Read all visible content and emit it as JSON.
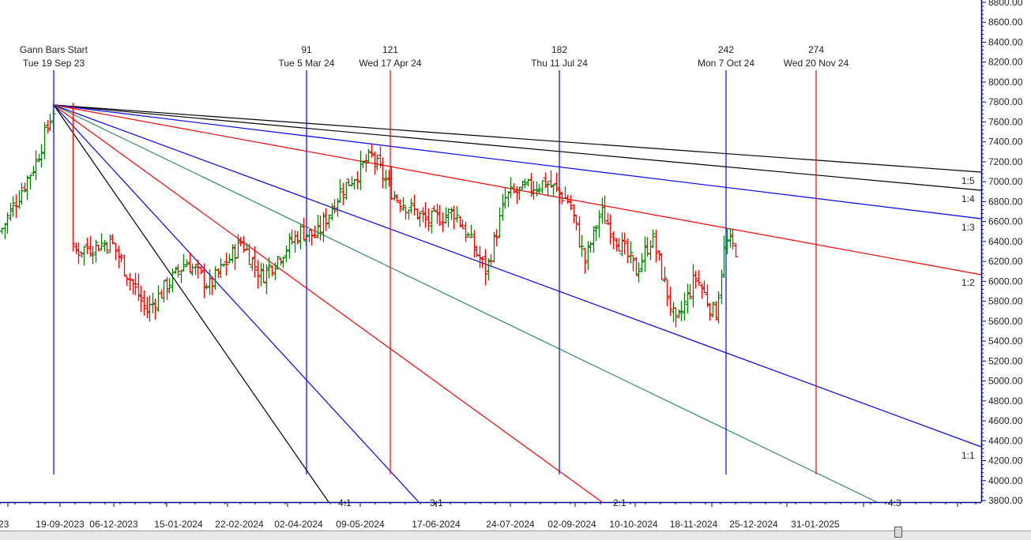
{
  "chart_data": {
    "type": "line",
    "title": "Gann Fan / Gann Bars",
    "subtype": "ohlc-bars-with-gann-fan",
    "y_axis": {
      "position": "right",
      "range": [
        3800,
        8800
      ],
      "ticks": [
        "8800.00",
        "8600.00",
        "8400.00",
        "8200.00",
        "8000.00",
        "7800.00",
        "7600.00",
        "7400.00",
        "7200.00",
        "7000.00",
        "6800.00",
        "6600.00",
        "6400.00",
        "6200.00",
        "6000.00",
        "5800.00",
        "5600.00",
        "5400.00",
        "5200.00",
        "5000.00",
        "4800.00",
        "4600.00",
        "4400.00",
        "4200.00",
        "4000.00",
        "3800.00"
      ]
    },
    "x_axis": {
      "ticks": [
        "23",
        "19-09-2023",
        "06-12-2023",
        "15-01-2024",
        "22-02-2024",
        "02-04-2024",
        "09-05-2024",
        "17-06-2024",
        "24-07-2024",
        "02-09-2024",
        "10-10-2024",
        "18-11-2024",
        "25-12-2024",
        "31-01-2025"
      ]
    },
    "gann_start": {
      "label": "Gann Bars Start",
      "date": "Tue 19 Sep 23",
      "price": 7770
    },
    "time_markers": [
      {
        "bars": "91",
        "date": "Tue 5 Mar 24",
        "color": "#0000ff"
      },
      {
        "bars": "121",
        "date": "Wed 17 Apr 24",
        "color": "#ff0000"
      },
      {
        "bars": "182",
        "date": "Thu 11 Jul 24",
        "color": "#0000ff"
      },
      {
        "bars": "242",
        "date": "Mon 7 Oct 24",
        "color": "#0000ff"
      },
      {
        "bars": "274",
        "date": "Wed 20 Nov 24",
        "color": "#ff0000"
      }
    ],
    "gann_lines": [
      {
        "ratio": "1:5",
        "color": "#000000",
        "end_price": 7090
      },
      {
        "ratio": "1:4",
        "color": "#000000",
        "end_price": 6910
      },
      {
        "ratio": "1:3",
        "color": "#0000ff",
        "end_price": 6620
      },
      {
        "ratio": "1:2",
        "color": "#ff0000",
        "end_price": 6060
      },
      {
        "ratio": "1:1",
        "color": "#0000ff",
        "end_price": 4330
      },
      {
        "ratio": "4:3",
        "color": "#2e8b57",
        "end_date": "~22-12-2024"
      },
      {
        "ratio": "2:1",
        "color": "#ff0000",
        "end_date": "~24-07-2024"
      },
      {
        "ratio": "3:1",
        "color": "#0000ff",
        "end_date": "~09-05-2024"
      },
      {
        "ratio": "4:1",
        "color": "#000000",
        "end_date": "~30-03-2024"
      }
    ],
    "price_path_approx": [
      {
        "date": "Aug-2023",
        "price": 6500
      },
      {
        "date": "early Sep-2023",
        "price": 7200
      },
      {
        "date": "19-09-2023",
        "price": 7750
      },
      {
        "date": "late Sep-2023",
        "price": 7550
      },
      {
        "date": "Oct-2023",
        "price": 6300
      },
      {
        "date": "mid Nov-2023",
        "price": 6400
      },
      {
        "date": "early Dec-2023",
        "price": 5700
      },
      {
        "date": "late Dec-2023",
        "price": 6200
      },
      {
        "date": "mid Jan-2024",
        "price": 5950
      },
      {
        "date": "early Feb-2024",
        "price": 6400
      },
      {
        "date": "mid Feb-2024",
        "price": 6050
      },
      {
        "date": "early Mar-2024",
        "price": 6500
      },
      {
        "date": "mid Mar-2024",
        "price": 6450
      },
      {
        "date": "early Apr-2024",
        "price": 6900
      },
      {
        "date": "mid Apr-2024",
        "price": 7250
      },
      {
        "date": "late Apr-2024",
        "price": 6850
      },
      {
        "date": "mid May-2024",
        "price": 6600
      },
      {
        "date": "early Jun-2024",
        "price": 6700
      },
      {
        "date": "mid Jun-2024",
        "price": 6100
      },
      {
        "date": "early Jul-2024",
        "price": 6850
      },
      {
        "date": "mid Jul-2024",
        "price": 7000
      },
      {
        "date": "late Jul-2024",
        "price": 6800
      },
      {
        "date": "early Aug-2024",
        "price": 6200
      },
      {
        "date": "mid Aug-2024",
        "price": 6700
      },
      {
        "date": "late Aug-2024",
        "price": 6100
      },
      {
        "date": "early Sep-2024",
        "price": 6450
      },
      {
        "date": "mid Sep-2024",
        "price": 5550
      },
      {
        "date": "late Sep-2024",
        "price": 6050
      },
      {
        "date": "early Oct-2024",
        "price": 5650
      },
      {
        "date": "07-10-2024",
        "price": 6400
      },
      {
        "date": "mid Oct-2024",
        "price": 6300
      }
    ],
    "colors": {
      "up_bar": "#008000",
      "down_bar": "#ff0000",
      "axis": "#00008b"
    },
    "grid": false
  }
}
